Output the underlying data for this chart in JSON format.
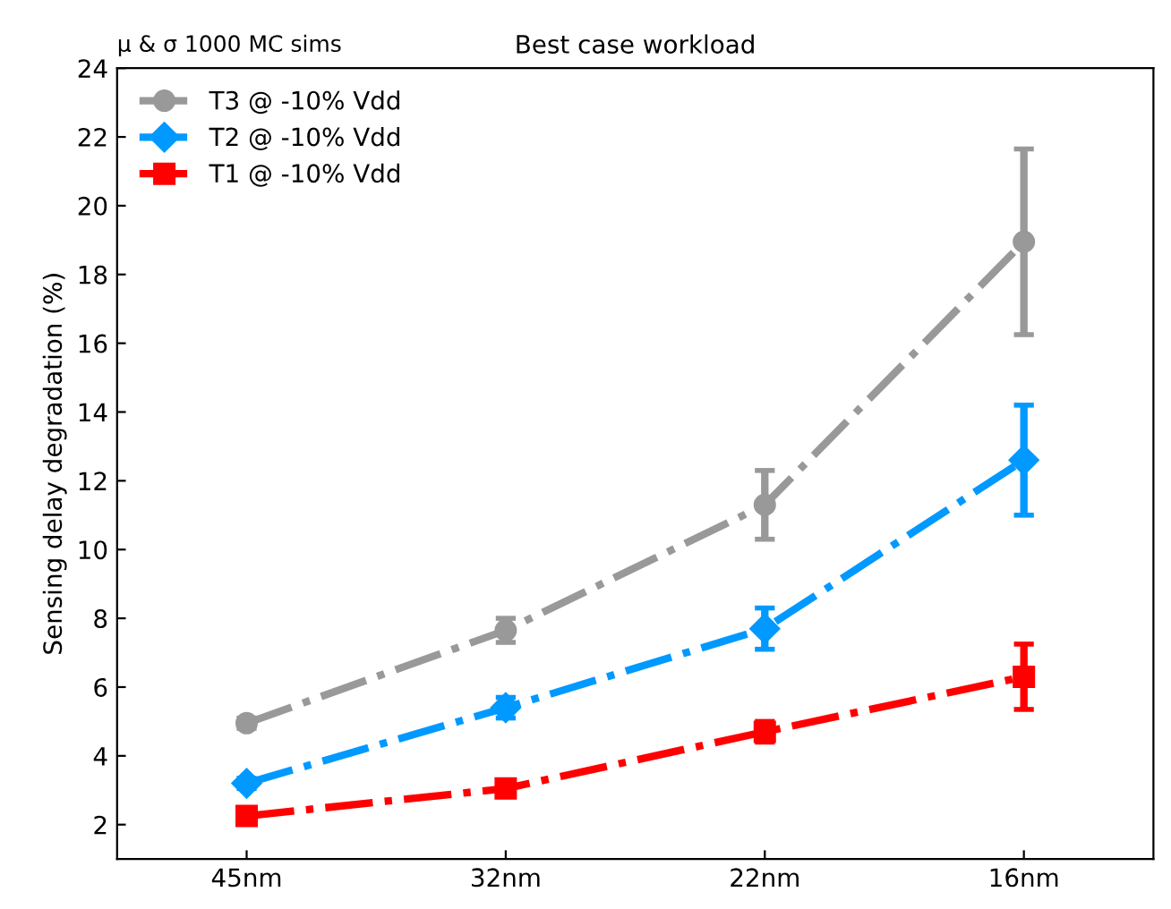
{
  "chart_data": {
    "type": "line",
    "title": "Best case workload",
    "ylabel": "Sensing delay degradation (%)",
    "annotations": [
      "μ & σ 1000 MC sims"
    ],
    "categories": [
      "45nm",
      "32nm",
      "22nm",
      "16nm"
    ],
    "ylim": [
      1,
      24
    ],
    "yticks": [
      2,
      4,
      6,
      8,
      10,
      12,
      14,
      16,
      18,
      20,
      22,
      24
    ],
    "grid": false,
    "legend": "top left",
    "line_style": "dashdot",
    "series": [
      {
        "name": "T3 @ -10% Vdd",
        "color": "#999999",
        "marker": "circle",
        "values": [
          4.95,
          7.65,
          11.3,
          18.95
        ],
        "errors": [
          0.15,
          0.35,
          1.0,
          2.7
        ]
      },
      {
        "name": "T2 @ -10% Vdd",
        "color": "#0099ff",
        "marker": "diamond",
        "values": [
          3.2,
          5.4,
          7.7,
          12.6
        ],
        "errors": [
          0.15,
          0.3,
          0.6,
          1.6
        ]
      },
      {
        "name": "T1 @ -10% Vdd",
        "color": "#ff0000",
        "marker": "square",
        "values": [
          2.25,
          3.05,
          4.7,
          6.3
        ],
        "errors": [
          0.1,
          0.15,
          0.3,
          0.95
        ]
      }
    ]
  }
}
